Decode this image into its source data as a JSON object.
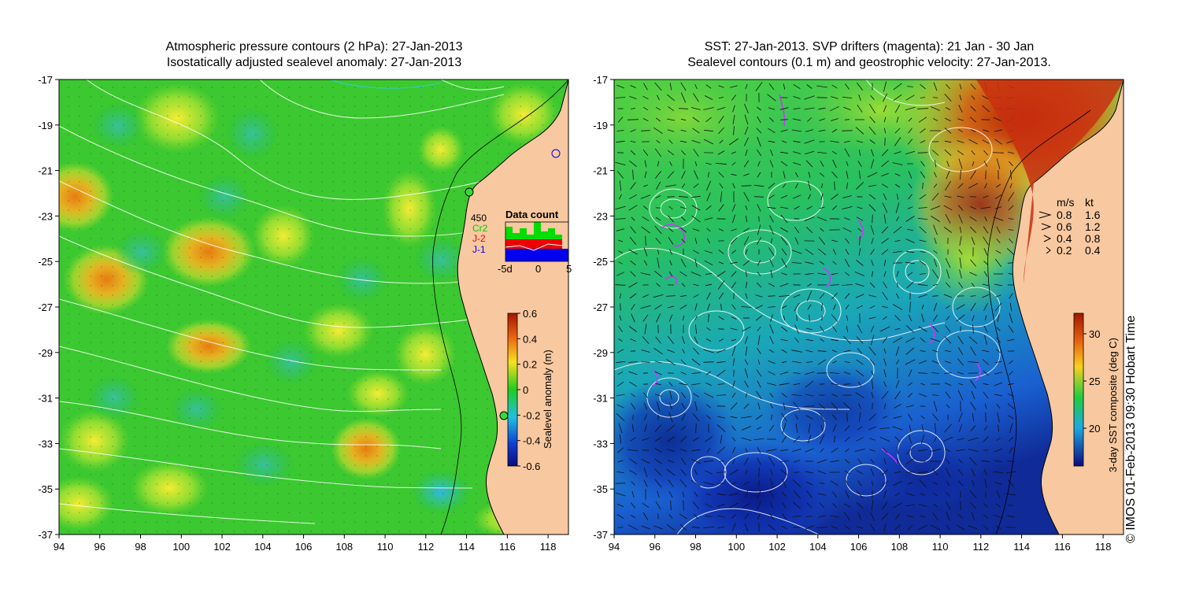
{
  "left_panel": {
    "title_line1": "Atmospheric pressure contours (2 hPa): 27-Jan-2013",
    "title_line2": "Isostatically adjusted sealevel anomaly: 27-Jan-2013",
    "colorbar_label": "Sealevel anomaly (m)",
    "colorbar_ticks": [
      "0.6",
      "0.4",
      "0.2",
      "0",
      "-0.2",
      "-0.4",
      "-0.6"
    ],
    "inset": {
      "title": "Data count",
      "max_label": "450",
      "series": [
        {
          "name": "Cr2",
          "color": "#00dd00"
        },
        {
          "name": "J-2",
          "color": "#ee0000"
        },
        {
          "name": "J-1",
          "color": "#0000ee"
        }
      ],
      "x_ticks": [
        "-5d",
        "0",
        "5"
      ]
    }
  },
  "right_panel": {
    "title_line1": "SST: 27-Jan-2013. SVP drifters (magenta): 21 Jan - 30 Jan",
    "title_line2": "Sealevel contours (0.1 m) and geostrophic velocity: 27-Jan-2013.",
    "colorbar_label": "3-day SST composite (deg C)",
    "colorbar_ticks": [
      "30",
      "25",
      "20"
    ],
    "velocity_legend": {
      "headers": [
        "m/s",
        "kt"
      ],
      "rows": [
        [
          "0.8",
          "1.6"
        ],
        [
          "0.6",
          "1.2"
        ],
        [
          "0.4",
          "0.8"
        ],
        [
          "0.2",
          "0.4"
        ]
      ]
    }
  },
  "axes": {
    "lat_ticks": [
      "-17",
      "-19",
      "-21",
      "-23",
      "-25",
      "-27",
      "-29",
      "-31",
      "-33",
      "-35",
      "-37"
    ],
    "lon_ticks": [
      "94",
      "96",
      "98",
      "100",
      "102",
      "104",
      "106",
      "108",
      "110",
      "112",
      "114",
      "116",
      "118"
    ]
  },
  "copyright": "© IMOS 01-Feb-2013 09:30 Hobart Time"
}
